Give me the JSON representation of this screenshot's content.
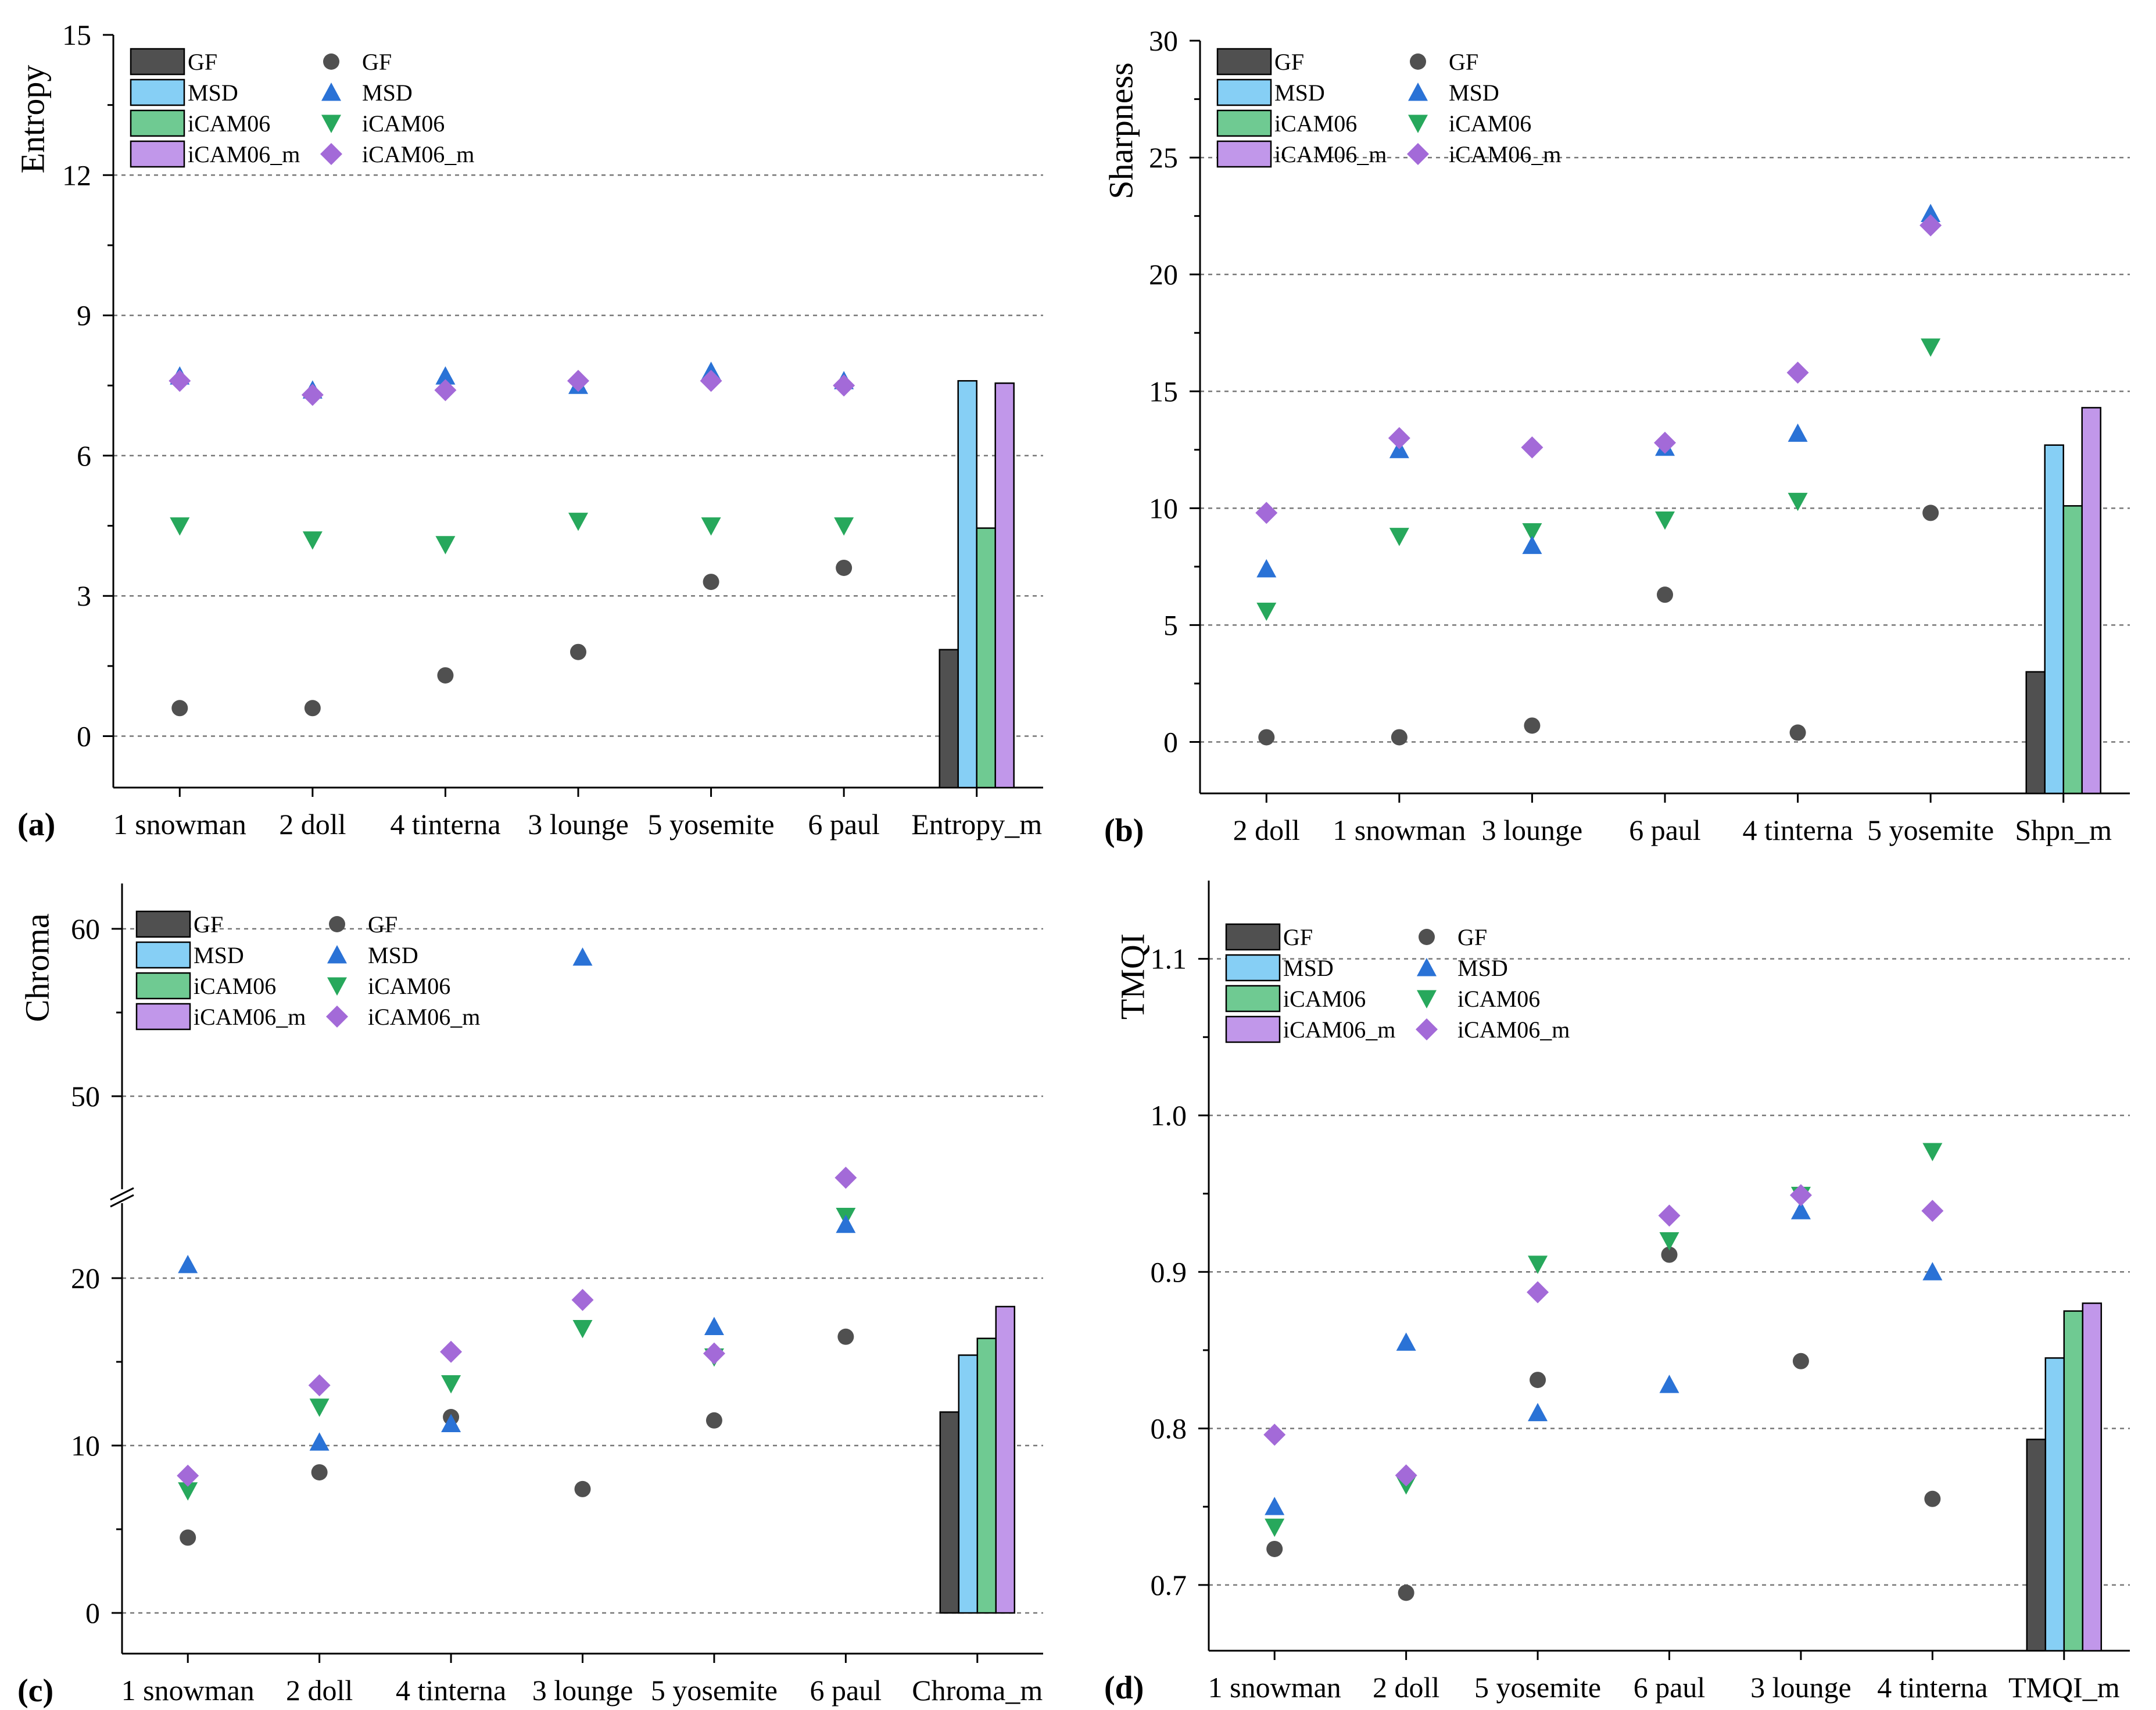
{
  "colors": {
    "GF": "#505050",
    "MSD": "#2a72d6",
    "iCAM06": "#27a85c",
    "iCAM06_m": "#a36ad8",
    "barGF": "#505050",
    "barMSD": "#86cff5",
    "bariCAM06": "#6fca92",
    "bariCAM06_m": "#c197ea",
    "grid": "#777777"
  },
  "series_names": [
    "GF",
    "MSD",
    "iCAM06",
    "iCAM06_m"
  ],
  "chart_data": [
    {
      "type": "scatter",
      "panel_label": "(a)",
      "ylabel": "Entropy",
      "ylim": [
        -1.1,
        15
      ],
      "yticks": [
        0,
        3,
        6,
        9,
        12,
        15
      ],
      "grid_values": [
        0,
        3,
        6,
        9,
        12
      ],
      "categories": [
        "1 snowman",
        "2 doll",
        "4 tinterna",
        "3 lounge",
        "5 yosemite",
        "6 paul",
        "Entropy_m"
      ],
      "series": [
        {
          "name": "GF",
          "marker": "circle",
          "values": [
            0.6,
            0.6,
            1.3,
            1.8,
            3.3,
            3.6
          ]
        },
        {
          "name": "MSD",
          "marker": "triangle-up",
          "values": [
            7.7,
            7.4,
            7.7,
            7.5,
            7.8,
            7.6
          ]
        },
        {
          "name": "iCAM06",
          "marker": "triangle-down",
          "values": [
            4.5,
            4.2,
            4.1,
            4.6,
            4.5,
            4.5
          ]
        },
        {
          "name": "iCAM06_m",
          "marker": "diamond",
          "values": [
            7.6,
            7.3,
            7.4,
            7.6,
            7.6,
            7.5
          ]
        }
      ],
      "mean_bars": {
        "GF": 1.85,
        "MSD": 7.6,
        "iCAM06": 4.45,
        "iCAM06_m": 7.55
      }
    },
    {
      "type": "scatter",
      "panel_label": "(b)",
      "ylabel": "Sharpness",
      "ylim": [
        -2.2,
        30
      ],
      "yticks": [
        0,
        5,
        10,
        15,
        20,
        25,
        30
      ],
      "grid_values": [
        0,
        5,
        10,
        15,
        20,
        25
      ],
      "categories": [
        "2 doll",
        "1 snowman",
        "3 lounge",
        "6 paul",
        "4 tinterna",
        "5 yosemite",
        "Shpn_m"
      ],
      "series": [
        {
          "name": "GF",
          "marker": "circle",
          "values": [
            0.2,
            0.2,
            0.7,
            6.3,
            0.4,
            9.8
          ]
        },
        {
          "name": "MSD",
          "marker": "triangle-up",
          "values": [
            7.4,
            12.5,
            8.4,
            12.6,
            13.2,
            22.6
          ]
        },
        {
          "name": "iCAM06",
          "marker": "triangle-down",
          "values": [
            5.6,
            8.8,
            9.0,
            9.5,
            10.3,
            16.9
          ]
        },
        {
          "name": "iCAM06_m",
          "marker": "diamond",
          "values": [
            9.8,
            13.0,
            12.6,
            12.8,
            15.8,
            22.1
          ]
        }
      ],
      "mean_bars": {
        "GF": 3.0,
        "MSD": 12.7,
        "iCAM06": 10.1,
        "iCAM06_m": 14.3
      }
    },
    {
      "type": "scatter",
      "panel_label": "(c)",
      "ylabel": "Chroma",
      "axis_break": {
        "lower": [
          0,
          25
        ],
        "upper_start": 45
      },
      "yticks": [
        0,
        10,
        20,
        50,
        60
      ],
      "grid_values": [
        0,
        10,
        20,
        50,
        60
      ],
      "categories": [
        "1 snowman",
        "2 doll",
        "4 tinterna",
        "3 lounge",
        "5 yosemite",
        "6 paul",
        "Chroma_m"
      ],
      "series": [
        {
          "name": "GF",
          "marker": "circle",
          "values": [
            4.5,
            8.4,
            11.7,
            7.4,
            11.5,
            16.5
          ]
        },
        {
          "name": "MSD",
          "marker": "triangle-up",
          "values": [
            20.8,
            10.2,
            11.3,
            58.3,
            17.1,
            23.2
          ]
        },
        {
          "name": "iCAM06",
          "marker": "triangle-down",
          "values": [
            7.3,
            12.3,
            13.7,
            17.0,
            15.3,
            23.7
          ]
        },
        {
          "name": "iCAM06_m",
          "marker": "diamond",
          "values": [
            8.2,
            13.6,
            15.6,
            18.7,
            15.5,
            26.0
          ]
        }
      ],
      "mean_bars": {
        "GF": 12.0,
        "MSD": 15.4,
        "iCAM06": 16.4,
        "iCAM06_m": 18.3
      }
    },
    {
      "type": "scatter",
      "panel_label": "(d)",
      "ylabel": "TMQI",
      "ylim": [
        0.658,
        1.15
      ],
      "yticks": [
        0.7,
        0.8,
        0.9,
        1.0,
        1.1
      ],
      "tick_labels": [
        "0.7",
        "0.8",
        "0.9",
        "1.0",
        "1.1"
      ],
      "grid_values": [
        0.7,
        0.8,
        0.9,
        1.0,
        1.1
      ],
      "categories": [
        "1 snowman",
        "2 doll",
        "5 yosemite",
        "6 paul",
        "3 lounge",
        "4 tinterna",
        "TMQI_m"
      ],
      "series": [
        {
          "name": "GF",
          "marker": "circle",
          "values": [
            0.723,
            0.695,
            0.831,
            0.911,
            0.843,
            0.755
          ]
        },
        {
          "name": "MSD",
          "marker": "triangle-up",
          "values": [
            0.75,
            0.855,
            0.81,
            0.828,
            0.939,
            0.9
          ]
        },
        {
          "name": "iCAM06",
          "marker": "triangle-down",
          "values": [
            0.737,
            0.764,
            0.905,
            0.92,
            0.949,
            0.977
          ]
        },
        {
          "name": "iCAM06_m",
          "marker": "diamond",
          "values": [
            0.796,
            0.77,
            0.887,
            0.936,
            0.949,
            0.939
          ]
        }
      ],
      "mean_bars": {
        "GF": 0.793,
        "MSD": 0.845,
        "iCAM06": 0.875,
        "iCAM06_m": 0.88
      }
    }
  ]
}
